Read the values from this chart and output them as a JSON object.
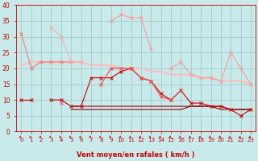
{
  "x": [
    0,
    1,
    2,
    3,
    4,
    5,
    6,
    7,
    8,
    9,
    10,
    11,
    12,
    13,
    14,
    15,
    16,
    17,
    18,
    19,
    20,
    21,
    22,
    23
  ],
  "series": [
    {
      "name": "dark_red_markers",
      "color": "#cc0000",
      "linewidth": 0.8,
      "marker": "x",
      "markersize": 3,
      "zorder": 4,
      "values": [
        10,
        10,
        null,
        10,
        10,
        8,
        8,
        17,
        17,
        17,
        19,
        20,
        17,
        16,
        12,
        10,
        13,
        9,
        9,
        8,
        8,
        7,
        5,
        7
      ]
    },
    {
      "name": "dark_red_flat_low",
      "color": "#880000",
      "linewidth": 0.8,
      "marker": null,
      "markersize": 0,
      "zorder": 3,
      "values": [
        10,
        10,
        null,
        null,
        null,
        7,
        7,
        7,
        7,
        7,
        7,
        7,
        7,
        7,
        7,
        7,
        7,
        8,
        8,
        8,
        7,
        7,
        7,
        7
      ]
    },
    {
      "name": "dark_red_flat_mid",
      "color": "#990000",
      "linewidth": 0.8,
      "marker": null,
      "markersize": 0,
      "zorder": 3,
      "values": [
        null,
        null,
        null,
        null,
        null,
        8,
        8,
        8,
        8,
        8,
        8,
        8,
        8,
        8,
        8,
        8,
        8,
        8,
        8,
        8,
        8,
        7,
        7,
        7
      ]
    },
    {
      "name": "light_pink_diagonal",
      "color": "#ffbbbb",
      "linewidth": 1.5,
      "marker": null,
      "markersize": 0,
      "zorder": 2,
      "values": [
        21,
        22,
        22,
        22,
        22,
        22,
        22,
        21,
        21,
        21,
        20,
        20,
        20,
        19,
        19,
        18,
        18,
        18,
        17,
        17,
        16,
        16,
        16,
        15
      ]
    },
    {
      "name": "pink_upper_curve",
      "color": "#ff9999",
      "linewidth": 0.8,
      "marker": "x",
      "markersize": 3,
      "zorder": 3,
      "values": [
        null,
        null,
        null,
        null,
        null,
        null,
        null,
        null,
        null,
        35,
        37,
        36,
        36,
        26,
        null,
        null,
        null,
        null,
        null,
        null,
        null,
        null,
        null,
        null
      ]
    },
    {
      "name": "pink_right_curve",
      "color": "#ff9999",
      "linewidth": 0.8,
      "marker": "x",
      "markersize": 3,
      "zorder": 3,
      "values": [
        null,
        null,
        null,
        null,
        null,
        null,
        null,
        null,
        null,
        null,
        null,
        null,
        null,
        null,
        null,
        20,
        22,
        18,
        17,
        17,
        16,
        25,
        20,
        15
      ]
    },
    {
      "name": "salmon_left",
      "color": "#ff7777",
      "linewidth": 0.8,
      "marker": "x",
      "markersize": 3,
      "zorder": 3,
      "values": [
        31,
        20,
        22,
        22,
        22,
        22,
        null,
        null,
        null,
        null,
        null,
        null,
        null,
        null,
        null,
        null,
        null,
        null,
        null,
        null,
        null,
        null,
        null,
        null
      ]
    },
    {
      "name": "pink_dotted_upper",
      "color": "#ffaaaa",
      "linewidth": 0.8,
      "marker": "x",
      "markersize": 3,
      "zorder": 3,
      "values": [
        null,
        null,
        null,
        33,
        30,
        22,
        22,
        null,
        null,
        null,
        null,
        null,
        null,
        null,
        null,
        null,
        null,
        null,
        null,
        null,
        null,
        null,
        null,
        null
      ]
    },
    {
      "name": "red_mid_curve",
      "color": "#ff4444",
      "linewidth": 0.8,
      "marker": "x",
      "markersize": 3,
      "zorder": 4,
      "values": [
        null,
        null,
        null,
        null,
        9,
        null,
        null,
        null,
        15,
        20,
        20,
        20,
        17,
        16,
        11,
        10,
        13,
        null,
        null,
        null,
        null,
        null,
        null,
        null
      ]
    }
  ],
  "xlabel": "Vent moyen/en rafales ( km/h )",
  "xlim": [
    -0.5,
    23.5
  ],
  "ylim": [
    0,
    40
  ],
  "yticks": [
    0,
    5,
    10,
    15,
    20,
    25,
    30,
    35,
    40
  ],
  "xticks": [
    0,
    1,
    2,
    3,
    4,
    5,
    6,
    7,
    8,
    9,
    10,
    11,
    12,
    13,
    14,
    15,
    16,
    17,
    18,
    19,
    20,
    21,
    22,
    23
  ],
  "bg_color": "#c8eaea",
  "grid_color": "#a0cccc",
  "xlabel_color": "#cc0000",
  "tick_color": "#cc0000",
  "spine_color": "#cc0000",
  "arrow_color": "#cc2222"
}
